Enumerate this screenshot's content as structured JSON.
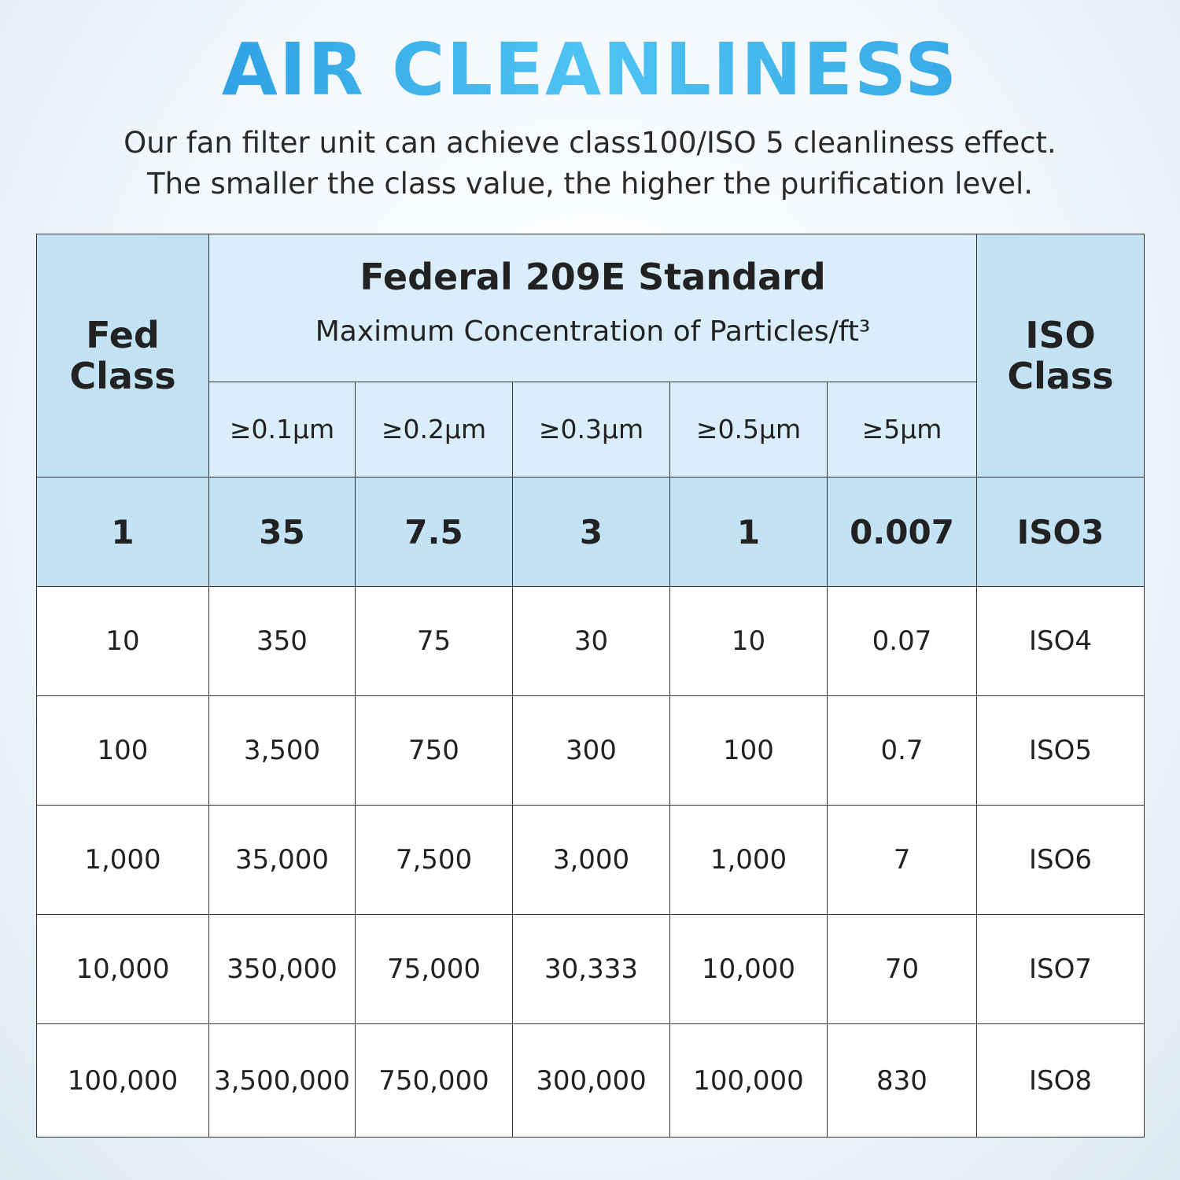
{
  "header": {
    "title": "AIR CLEANLINESS",
    "subtitle": [
      "Our fan filter unit can achieve class100/ISO 5 cleanliness effect.",
      "The smaller the class value, the higher the purification level."
    ]
  },
  "table": {
    "fed_class_header": "Fed Class",
    "iso_class_header": "ISO Class",
    "group_title": "Federal 209E Standard",
    "group_subtitle": "Maximum Concentration of Particles/ft³",
    "columns": [
      "≥0.1μm",
      "≥0.2μm",
      "≥0.3μm",
      "≥0.5μm",
      "≥5μm"
    ],
    "rows": [
      [
        "1",
        "35",
        "7.5",
        "3",
        "1",
        "0.007",
        "ISO3"
      ],
      [
        "10",
        "350",
        "75",
        "30",
        "10",
        "0.07",
        "ISO4"
      ],
      [
        "100",
        "3,500",
        "750",
        "300",
        "100",
        "0.7",
        "ISO5"
      ],
      [
        "1,000",
        "35,000",
        "7,500",
        "3,000",
        "1,000",
        "7",
        "ISO6"
      ],
      [
        "10,000",
        "350,000",
        "75,000",
        "30,333",
        "10,000",
        "70",
        "ISO7"
      ],
      [
        "100,000",
        "3,500,000",
        "750,000",
        "300,000",
        "100,000",
        "830",
        "ISO8"
      ]
    ]
  }
}
